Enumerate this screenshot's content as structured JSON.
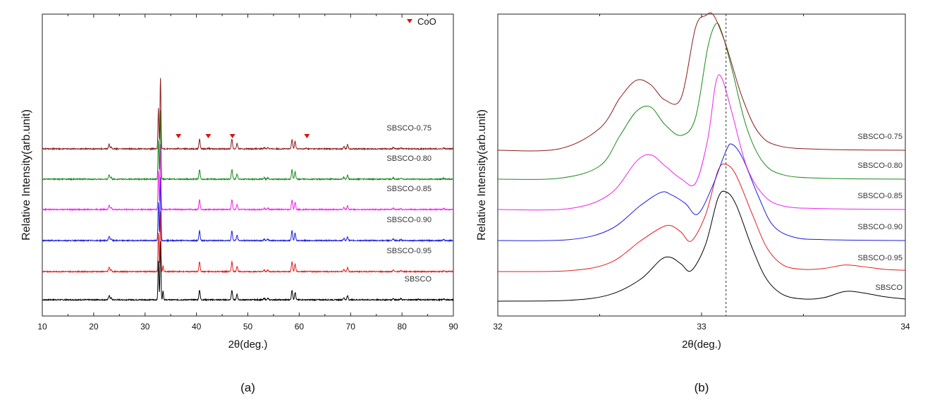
{
  "colors": {
    "SBSCO": "#000000",
    "SBSCO-0.95": "#e02020",
    "SBSCO-0.90": "#1c1ce0",
    "SBSCO-0.85": "#ee22ee",
    "SBSCO-0.80": "#1a8a1a",
    "SBSCO-0.75": "#8b1a1a",
    "marker": "#dd1111"
  },
  "chart_data": [
    {
      "type": "line",
      "panel_label": "(a)",
      "xlabel": "2θ(deg.)",
      "ylabel": "Relative Intensity(arb.unit)",
      "xlim": [
        10,
        90
      ],
      "xticks": [
        10,
        20,
        30,
        40,
        50,
        60,
        70,
        80,
        90
      ],
      "legend": {
        "symbol": "▼",
        "label": "CoO",
        "position": "top-right"
      },
      "series": [
        {
          "name": "SBSCO",
          "offset": 0,
          "peaks": [
            [
              23.0,
              0.25
            ],
            [
              23.4,
              0.1
            ],
            [
              32.6,
              2.2
            ],
            [
              33.0,
              3.3
            ],
            [
              33.5,
              0.5
            ],
            [
              40.6,
              0.55
            ],
            [
              46.9,
              0.55
            ],
            [
              47.9,
              0.3
            ],
            [
              53.2,
              0.08
            ],
            [
              53.9,
              0.08
            ],
            [
              58.6,
              0.55
            ],
            [
              59.2,
              0.42
            ],
            [
              68.7,
              0.12
            ],
            [
              69.4,
              0.22
            ],
            [
              78.3,
              0.08
            ],
            [
              79.8,
              0.06
            ],
            [
              83.2,
              0.05
            ],
            [
              88.1,
              0.05
            ]
          ]
        },
        {
          "name": "SBSCO-0.95",
          "offset": 1,
          "peaks": [
            [
              23.0,
              0.25
            ],
            [
              23.4,
              0.1
            ],
            [
              32.6,
              2.2
            ],
            [
              33.0,
              3.4
            ],
            [
              33.5,
              0.3
            ],
            [
              40.6,
              0.55
            ],
            [
              46.9,
              0.55
            ],
            [
              47.9,
              0.3
            ],
            [
              53.2,
              0.08
            ],
            [
              53.9,
              0.08
            ],
            [
              58.6,
              0.55
            ],
            [
              59.2,
              0.42
            ],
            [
              68.7,
              0.12
            ],
            [
              69.4,
              0.22
            ],
            [
              78.3,
              0.08
            ],
            [
              79.8,
              0.06
            ],
            [
              88.1,
              0.05
            ]
          ]
        },
        {
          "name": "SBSCO-0.90",
          "offset": 2,
          "peaks": [
            [
              23.0,
              0.25
            ],
            [
              23.4,
              0.1
            ],
            [
              32.6,
              2.2
            ],
            [
              33.0,
              3.6
            ],
            [
              40.6,
              0.55
            ],
            [
              46.9,
              0.55
            ],
            [
              47.9,
              0.3
            ],
            [
              53.2,
              0.08
            ],
            [
              53.9,
              0.08
            ],
            [
              58.6,
              0.55
            ],
            [
              59.2,
              0.42
            ],
            [
              68.7,
              0.12
            ],
            [
              69.4,
              0.22
            ],
            [
              78.3,
              0.08
            ],
            [
              79.8,
              0.06
            ],
            [
              88.1,
              0.05
            ]
          ]
        },
        {
          "name": "SBSCO-0.85",
          "offset": 3,
          "peaks": [
            [
              23.0,
              0.25
            ],
            [
              23.4,
              0.1
            ],
            [
              32.6,
              2.2
            ],
            [
              33.0,
              3.7
            ],
            [
              40.6,
              0.55
            ],
            [
              46.9,
              0.55
            ],
            [
              47.9,
              0.3
            ],
            [
              53.2,
              0.08
            ],
            [
              53.9,
              0.08
            ],
            [
              58.6,
              0.55
            ],
            [
              59.2,
              0.42
            ],
            [
              68.7,
              0.12
            ],
            [
              69.4,
              0.22
            ],
            [
              78.3,
              0.08
            ],
            [
              79.8,
              0.06
            ],
            [
              88.1,
              0.05
            ]
          ]
        },
        {
          "name": "SBSCO-0.80",
          "offset": 4,
          "peaks": [
            [
              23.0,
              0.25
            ],
            [
              23.4,
              0.1
            ],
            [
              32.6,
              2.2
            ],
            [
              33.0,
              3.9
            ],
            [
              40.6,
              0.55
            ],
            [
              46.9,
              0.55
            ],
            [
              47.9,
              0.3
            ],
            [
              53.2,
              0.08
            ],
            [
              53.9,
              0.08
            ],
            [
              58.6,
              0.55
            ],
            [
              59.2,
              0.42
            ],
            [
              68.7,
              0.12
            ],
            [
              69.4,
              0.22
            ],
            [
              78.3,
              0.08
            ],
            [
              79.8,
              0.06
            ],
            [
              88.1,
              0.05
            ]
          ]
        },
        {
          "name": "SBSCO-0.75",
          "offset": 5,
          "peaks": [
            [
              23.0,
              0.25
            ],
            [
              23.4,
              0.1
            ],
            [
              32.6,
              2.3
            ],
            [
              33.0,
              4.0
            ],
            [
              36.5,
              0.03
            ],
            [
              40.6,
              0.55
            ],
            [
              42.3,
              0.03
            ],
            [
              46.9,
              0.55
            ],
            [
              47.9,
              0.3
            ],
            [
              53.2,
              0.08
            ],
            [
              53.9,
              0.08
            ],
            [
              58.6,
              0.55
            ],
            [
              59.2,
              0.42
            ],
            [
              61.4,
              0.03
            ],
            [
              68.7,
              0.12
            ],
            [
              69.4,
              0.22
            ],
            [
              78.3,
              0.08
            ],
            [
              79.8,
              0.06
            ],
            [
              88.1,
              0.05
            ]
          ]
        }
      ],
      "markers": {
        "label": "CoO",
        "series": "SBSCO-0.75",
        "x": [
          36.5,
          42.3,
          47.0,
          61.5
        ]
      }
    },
    {
      "type": "line",
      "panel_label": "(b)",
      "xlabel": "2θ(deg.)",
      "ylabel": "Relative Intensity(arb.unit)",
      "xlim": [
        32,
        34
      ],
      "xticks": [
        32,
        33,
        34
      ],
      "reference_line_x": 33.12,
      "series": [
        {
          "name": "SBSCO",
          "offset": 0,
          "x": [
            32.0,
            32.35,
            32.55,
            32.7,
            32.8,
            32.85,
            32.9,
            32.95,
            33.02,
            33.08,
            33.12,
            33.17,
            33.25,
            33.32,
            33.4,
            33.5,
            33.6,
            33.7,
            33.78,
            33.9,
            34.0
          ],
          "y": [
            0.0,
            0.02,
            0.15,
            0.5,
            0.95,
            1.0,
            0.85,
            0.7,
            1.3,
            2.35,
            2.5,
            2.2,
            1.2,
            0.5,
            0.15,
            0.05,
            0.08,
            0.22,
            0.2,
            0.1,
            0.05
          ]
        },
        {
          "name": "SBSCO-0.95",
          "offset": 1,
          "x": [
            32.0,
            32.35,
            32.55,
            32.7,
            32.8,
            32.85,
            32.9,
            32.95,
            33.02,
            33.08,
            33.12,
            33.17,
            33.25,
            33.32,
            33.4,
            33.5,
            33.6,
            33.7,
            33.78,
            33.9,
            34.0
          ],
          "y": [
            0.0,
            0.02,
            0.2,
            0.7,
            1.0,
            1.05,
            0.9,
            0.7,
            1.3,
            2.3,
            2.45,
            2.2,
            1.3,
            0.55,
            0.15,
            0.05,
            0.07,
            0.15,
            0.12,
            0.05,
            0.03
          ]
        },
        {
          "name": "SBSCO-0.90",
          "offset": 2,
          "x": [
            32.0,
            32.35,
            32.55,
            32.7,
            32.8,
            32.85,
            32.92,
            32.98,
            33.05,
            33.12,
            33.15,
            33.2,
            33.28,
            33.35,
            33.45,
            33.6,
            34.0
          ],
          "y": [
            0.0,
            0.02,
            0.25,
            0.8,
            1.1,
            1.05,
            0.85,
            0.6,
            1.2,
            2.05,
            2.2,
            1.9,
            1.0,
            0.35,
            0.08,
            0.02,
            0.0
          ]
        },
        {
          "name": "SBSCO-0.85",
          "offset": 3,
          "x": [
            32.0,
            32.35,
            32.55,
            32.68,
            32.75,
            32.82,
            32.9,
            32.97,
            33.03,
            33.07,
            33.1,
            33.15,
            33.22,
            33.3,
            33.4,
            33.6,
            34.0
          ],
          "y": [
            0.0,
            0.02,
            0.35,
            1.1,
            1.25,
            1.0,
            0.7,
            0.6,
            1.6,
            2.9,
            3.0,
            2.2,
            1.0,
            0.35,
            0.08,
            0.02,
            0.0
          ]
        },
        {
          "name": "SBSCO-0.80",
          "offset": 4,
          "x": [
            32.0,
            32.3,
            32.5,
            32.6,
            32.68,
            32.75,
            32.82,
            32.9,
            32.97,
            33.03,
            33.07,
            33.1,
            33.15,
            33.22,
            33.3,
            33.4,
            33.6,
            34.0
          ],
          "y": [
            0.0,
            0.02,
            0.3,
            1.0,
            1.55,
            1.65,
            1.25,
            1.0,
            1.4,
            3.0,
            3.55,
            3.35,
            2.5,
            1.2,
            0.4,
            0.1,
            0.02,
            0.0
          ]
        },
        {
          "name": "SBSCO-0.75",
          "offset": 5,
          "x": [
            32.0,
            32.3,
            32.5,
            32.6,
            32.68,
            32.75,
            32.82,
            32.9,
            32.97,
            33.02,
            33.06,
            33.12,
            33.2,
            33.28,
            33.38,
            33.6,
            34.0
          ],
          "y": [
            0.0,
            0.03,
            0.5,
            1.2,
            1.6,
            1.5,
            1.15,
            1.2,
            2.8,
            3.45,
            3.35,
            2.4,
            1.2,
            0.4,
            0.1,
            0.02,
            0.0
          ]
        }
      ]
    }
  ]
}
